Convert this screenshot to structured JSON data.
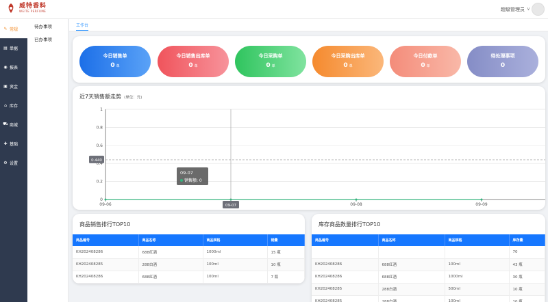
{
  "header": {
    "logo_cn": "威特香料",
    "logo_en": "WEITE PERFUME",
    "user_name": "超级管理员",
    "caret": "∨"
  },
  "sidebar": {
    "items": [
      {
        "icon": "✎",
        "label": "常规",
        "active": true
      },
      {
        "icon": "▤",
        "label": "单据"
      },
      {
        "icon": "◉",
        "label": "报表"
      },
      {
        "icon": "▣",
        "label": "资金"
      },
      {
        "icon": "⌂",
        "label": "库存"
      },
      {
        "icon": "⛟",
        "label": "商城"
      },
      {
        "icon": "✚",
        "label": "基础"
      },
      {
        "icon": "⚙",
        "label": "设置"
      }
    ]
  },
  "submenu": {
    "items": [
      {
        "label": "待办事项"
      },
      {
        "label": "已办事项"
      }
    ]
  },
  "tabs": [
    {
      "label": "工作台"
    }
  ],
  "stats": [
    {
      "label": "今日销售单",
      "value": "0",
      "unit": "单",
      "color": "#2b7ef0"
    },
    {
      "label": "今日销售出库单",
      "value": "0",
      "unit": "单",
      "color": "#f0636b"
    },
    {
      "label": "今日采购单",
      "value": "0",
      "unit": "单",
      "color": "#3fcf6e"
    },
    {
      "label": "今日采购出库单",
      "value": "0",
      "unit": "单",
      "color": "#f79742"
    },
    {
      "label": "今日付款单",
      "value": "0",
      "unit": "单",
      "color": "#f59a8a"
    },
    {
      "label": "待处理事项",
      "value": "0",
      "unit": "",
      "color": "#8f97cc"
    }
  ],
  "sales_trend": {
    "title": "近7天销售额走势",
    "subtitle": "(单位：元)",
    "tooltip": {
      "date": "09-07",
      "series": "销售额",
      "value": "0"
    },
    "crosshair_y_label": "0.440",
    "crosshair_x_label": "09-07"
  },
  "chart_data": {
    "type": "line",
    "title": "近7天销售额走势",
    "x": [
      "09-06",
      "09-07",
      "09-08",
      "09-09"
    ],
    "series": [
      {
        "name": "销售额",
        "values": [
          0,
          0,
          0,
          0
        ]
      }
    ],
    "ylim": [
      0,
      1
    ],
    "yticks": [
      "0",
      "0.2",
      "0.4",
      "0.6",
      "0.8",
      "1"
    ],
    "grid": true
  },
  "sales_top": {
    "title": "商品销售排行TOP10",
    "columns": [
      "商品编号",
      "商品名称",
      "商品规格",
      "销量"
    ],
    "rows": [
      [
        "KH202408286",
        "688红酒",
        "1000ml",
        "15 瓶"
      ],
      [
        "KH202408285",
        "288白酒",
        "100ml",
        "10 瓶"
      ],
      [
        "KH202408286",
        "688红酒",
        "100ml",
        "7 瓶"
      ]
    ]
  },
  "stock_top": {
    "title": "库存商品数量排行TOP10",
    "columns": [
      "商品编号",
      "商品名称",
      "商品规格",
      "库存量"
    ],
    "rows": [
      [
        "",
        "",
        "",
        "70"
      ],
      [
        "KH202408286",
        "688红酒",
        "100ml",
        "43 瓶"
      ],
      [
        "KH202408286",
        "688红酒",
        "1000ml",
        "30 瓶"
      ],
      [
        "KH202408285",
        "288白酒",
        "500ml",
        "10 瓶"
      ],
      [
        "KH202408285",
        "288白酒",
        "100ml",
        "10 瓶"
      ]
    ]
  }
}
